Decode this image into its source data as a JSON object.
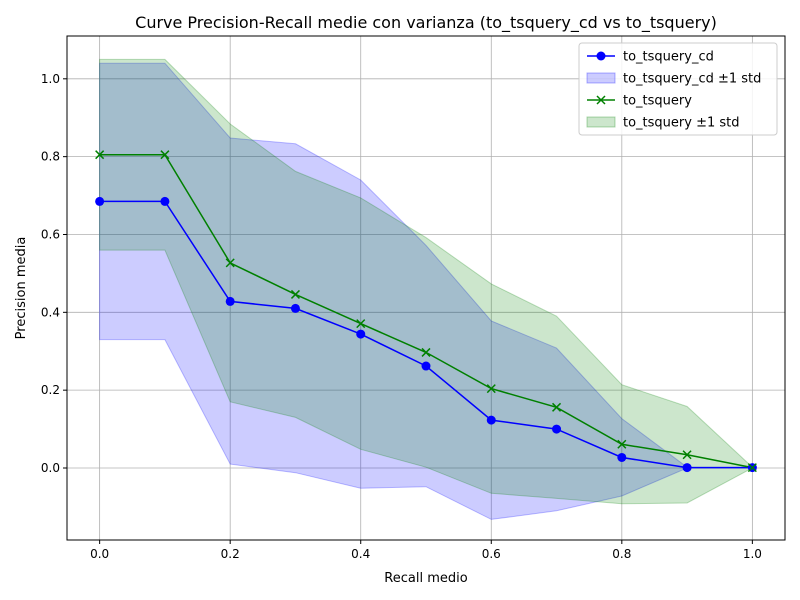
{
  "chart_data": {
    "type": "line",
    "title": "Curve Precision-Recall medie con varianza (to_tsquery_cd vs to_tsquery)",
    "xlabel": "Recall medio",
    "ylabel": "Precision media",
    "xlim": [
      -0.05,
      1.05
    ],
    "ylim": [
      -0.185,
      1.11
    ],
    "grid": true,
    "legend_position": "top-right",
    "xticks": [
      0.0,
      0.2,
      0.4,
      0.6,
      0.8,
      1.0
    ],
    "xtick_labels": [
      "0.0",
      "0.2",
      "0.4",
      "0.6",
      "0.8",
      "1.0"
    ],
    "yticks": [
      0.0,
      0.2,
      0.4,
      0.6,
      0.8,
      1.0
    ],
    "ytick_labels": [
      "0.0",
      "0.2",
      "0.4",
      "0.6",
      "0.8",
      "1.0"
    ],
    "x": [
      0.0,
      0.1,
      0.2,
      0.3,
      0.4,
      0.5,
      0.6,
      0.7,
      0.8,
      0.9,
      1.0
    ],
    "series": [
      {
        "name": "to_tsquery_cd",
        "color": "#0000ff",
        "marker": "circle",
        "values": [
          0.685,
          0.685,
          0.428,
          0.41,
          0.344,
          0.262,
          0.123,
          0.1,
          0.027,
          0.001,
          0.001
        ],
        "band_name": "to_tsquery_cd ±1 std",
        "band_color": "#0000ff",
        "band_opacity": 0.2,
        "lower": [
          0.33,
          0.33,
          0.01,
          -0.012,
          -0.052,
          -0.048,
          -0.132,
          -0.11,
          -0.072,
          0.0,
          0.0
        ],
        "upper": [
          1.04,
          1.04,
          0.848,
          0.833,
          0.74,
          0.572,
          0.378,
          0.308,
          0.127,
          0.002,
          0.002
        ]
      },
      {
        "name": "to_tsquery",
        "color": "#008000",
        "marker": "x",
        "values": [
          0.805,
          0.805,
          0.527,
          0.446,
          0.371,
          0.297,
          0.204,
          0.156,
          0.061,
          0.034,
          0.001
        ],
        "band_name": "to_tsquery ±1 std",
        "band_color": "#008000",
        "band_opacity": 0.2,
        "lower": [
          0.56,
          0.56,
          0.17,
          0.13,
          0.048,
          0.002,
          -0.065,
          -0.078,
          -0.092,
          -0.09,
          0.0
        ],
        "upper": [
          1.05,
          1.05,
          0.884,
          0.762,
          0.694,
          0.592,
          0.473,
          0.39,
          0.214,
          0.158,
          0.002
        ]
      }
    ]
  }
}
